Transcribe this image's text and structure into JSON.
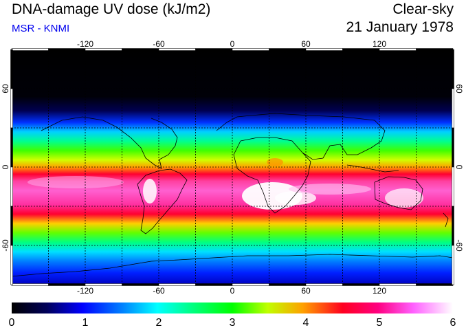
{
  "header": {
    "title": "DNA-damage UV dose (kJ/m2)",
    "subtitle": "MSR - KNMI",
    "mode": "Clear-sky",
    "date": "21 January 1978"
  },
  "map": {
    "longitude_ticks": [
      "-120",
      "-60",
      "0",
      "60",
      "120"
    ],
    "latitude_ticks": [
      "60",
      "0",
      "-60"
    ],
    "colors": {
      "palette": [
        "#000000",
        "#00003a",
        "#000090",
        "#0000ff",
        "#0090ff",
        "#00ffff",
        "#00ff90",
        "#00ff00",
        "#a0ff00",
        "#ffff00",
        "#ff9000",
        "#ff0030",
        "#ff0090",
        "#ff60ff",
        "#ffd0ff",
        "#ffffff"
      ]
    }
  },
  "colorbar": {
    "labels": [
      "0",
      "1",
      "2",
      "3",
      "4",
      "5",
      "6"
    ],
    "min": 0,
    "max": 6
  }
}
